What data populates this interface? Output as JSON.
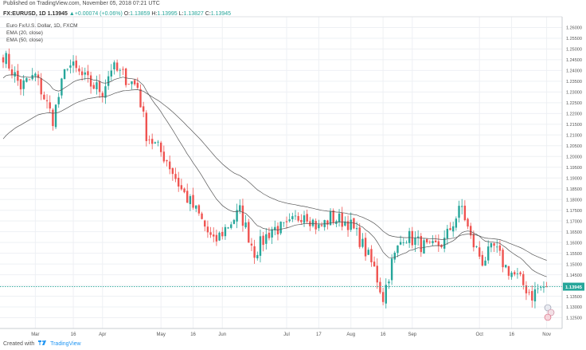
{
  "header": {
    "published_line": "Published on TradingView.com, November 05, 2018 07:21 UTC",
    "symbol": "FX:EURUSD, 1D",
    "price": "1.13945",
    "arrow": "▲",
    "change": "+0.00074 (+0.06%)",
    "o_label": "O:",
    "o_value": "1.13859",
    "h_label": "H:",
    "h_value": "1.13995",
    "l_label": "L:",
    "l_value": "1.13827",
    "c_label": "C:",
    "c_value": "1.13945"
  },
  "legend": {
    "series_title": "Euro Fx/U.S. Dollar, 1D, FXCM",
    "ema20": "EMA (20, close)",
    "ema50": "EMA (50, close)"
  },
  "footer": {
    "created_with": "Created with",
    "brand": "TradingView"
  },
  "colors": {
    "up": "#26a69a",
    "down": "#ef5350",
    "ema": "#555555",
    "grid": "#eef0f4",
    "last_price_bg": "#26a69a"
  },
  "chart_data": {
    "type": "candlestick",
    "title": "Euro Fx/U.S. Dollar, 1D, FXCM",
    "ylim": [
      1.12,
      1.265
    ],
    "y_ticks": [
      "1.26000",
      "1.25500",
      "1.25000",
      "1.24500",
      "1.24000",
      "1.23500",
      "1.23000",
      "1.22500",
      "1.22000",
      "1.21500",
      "1.21000",
      "1.20500",
      "1.20000",
      "1.19500",
      "1.19000",
      "1.18500",
      "1.18000",
      "1.17500",
      "1.17000",
      "1.16500",
      "1.16000",
      "1.15500",
      "1.15000",
      "1.14500",
      "1.14000",
      "1.13500",
      "1.13000",
      "1.12500"
    ],
    "x_ticks": [
      "Mar",
      "16",
      "Apr",
      "May",
      "16",
      "Jun",
      "Jul",
      "17",
      "Aug",
      "16",
      "Sep",
      "Oct",
      "16",
      "Nov"
    ],
    "x_tick_days": [
      11,
      24,
      34,
      54,
      65,
      75,
      97,
      108,
      119,
      130,
      140,
      163,
      174,
      186
    ],
    "last_price": 1.13945,
    "last_price_label": "1.13945",
    "anchors": [
      [
        0,
        1.2475
      ],
      [
        6,
        1.2325
      ],
      [
        11,
        1.2375
      ],
      [
        17,
        1.2175
      ],
      [
        22,
        1.2435
      ],
      [
        30,
        1.2335
      ],
      [
        34,
        1.2305
      ],
      [
        37,
        1.2415
      ],
      [
        46,
        1.2325
      ],
      [
        49,
        1.2105
      ],
      [
        56,
        1.1985
      ],
      [
        61,
        1.1845
      ],
      [
        67,
        1.1725
      ],
      [
        72,
        1.1595
      ],
      [
        76,
        1.1665
      ],
      [
        81,
        1.1745
      ],
      [
        86,
        1.1555
      ],
      [
        92,
        1.1665
      ],
      [
        97,
        1.1665
      ],
      [
        103,
        1.1745
      ],
      [
        108,
        1.1665
      ],
      [
        112,
        1.1715
      ],
      [
        118,
        1.1695
      ],
      [
        122,
        1.1615
      ],
      [
        127,
        1.1475
      ],
      [
        130,
        1.1345
      ],
      [
        133,
        1.1505
      ],
      [
        137,
        1.1635
      ],
      [
        140,
        1.1615
      ],
      [
        146,
        1.1565
      ],
      [
        151,
        1.1605
      ],
      [
        154,
        1.1695
      ],
      [
        157,
        1.1765
      ],
      [
        160,
        1.1615
      ],
      [
        164,
        1.1515
      ],
      [
        168,
        1.1575
      ],
      [
        172,
        1.1485
      ],
      [
        176,
        1.1435
      ],
      [
        181,
        1.1355
      ],
      [
        183,
        1.1385
      ],
      [
        186,
        1.1395
      ]
    ],
    "ema": [
      {
        "name": "EMA (20, close)",
        "period": 20
      },
      {
        "name": "EMA (50, close)",
        "period": 50
      }
    ]
  }
}
